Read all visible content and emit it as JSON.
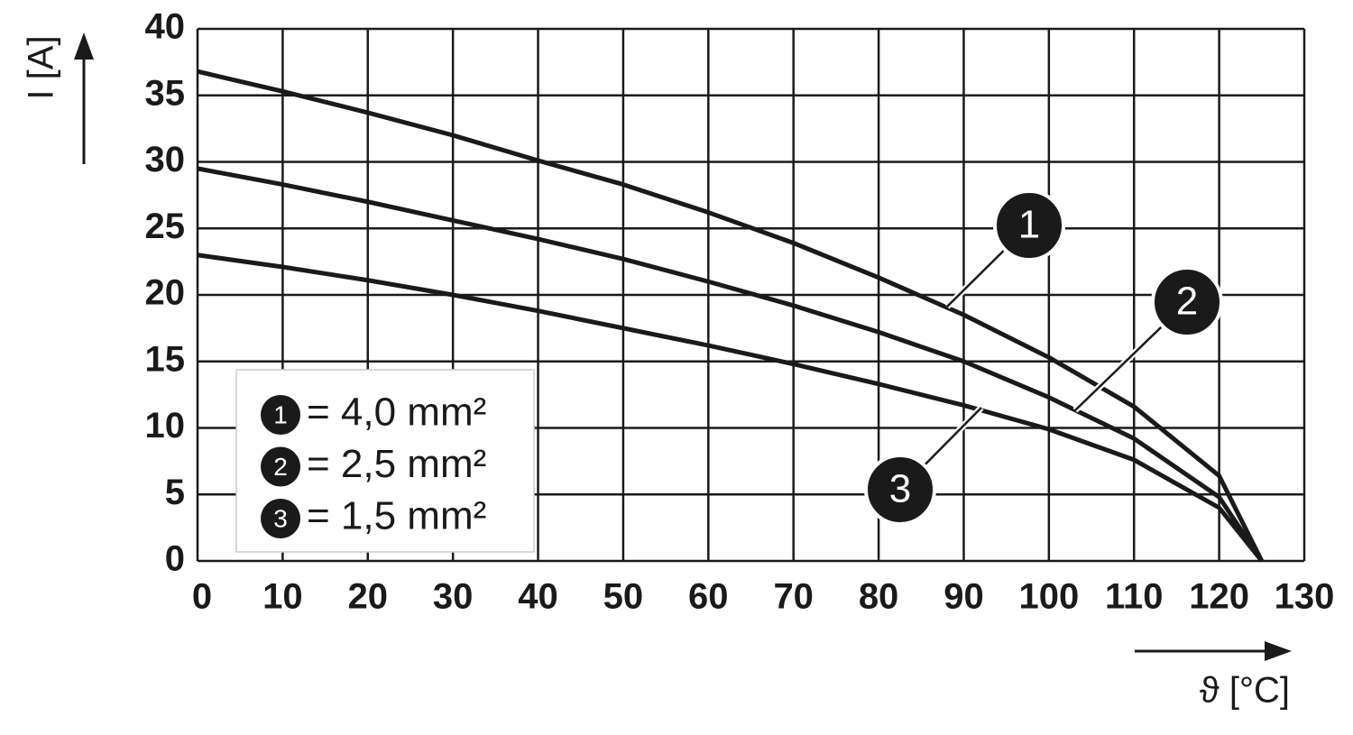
{
  "chart_data": {
    "type": "line",
    "x_label": "ϑ [°C]",
    "y_label": "I [A]",
    "x": [
      0,
      10,
      20,
      30,
      40,
      50,
      60,
      70,
      80,
      90,
      100,
      110,
      120,
      125
    ],
    "series": [
      {
        "name": "1",
        "label": "= 4,0 mm²",
        "color": "#1a1a1a",
        "values": [
          36.8,
          35.3,
          33.7,
          32.0,
          30.1,
          28.3,
          26.2,
          23.9,
          21.3,
          18.5,
          15.3,
          11.6,
          6.4,
          0
        ]
      },
      {
        "name": "2",
        "label": "= 2,5 mm²",
        "color": "#1a1a1a",
        "values": [
          29.5,
          28.3,
          27.0,
          25.6,
          24.2,
          22.7,
          21.0,
          19.2,
          17.2,
          15.0,
          12.3,
          9.2,
          4.8,
          0
        ]
      },
      {
        "name": "3",
        "label": "= 1,5 mm²",
        "color": "#1a1a1a",
        "values": [
          23.0,
          22.1,
          21.1,
          20.0,
          18.8,
          17.5,
          16.2,
          14.8,
          13.3,
          11.7,
          9.9,
          7.6,
          4.0,
          0
        ]
      }
    ],
    "xlim": [
      0,
      130
    ],
    "ylim": [
      0,
      40
    ],
    "xticks": [
      0,
      10,
      20,
      30,
      40,
      50,
      60,
      70,
      80,
      90,
      100,
      110,
      120,
      130
    ],
    "yticks": [
      0,
      5,
      10,
      15,
      20,
      25,
      30,
      35,
      40
    ],
    "grid": true
  }
}
